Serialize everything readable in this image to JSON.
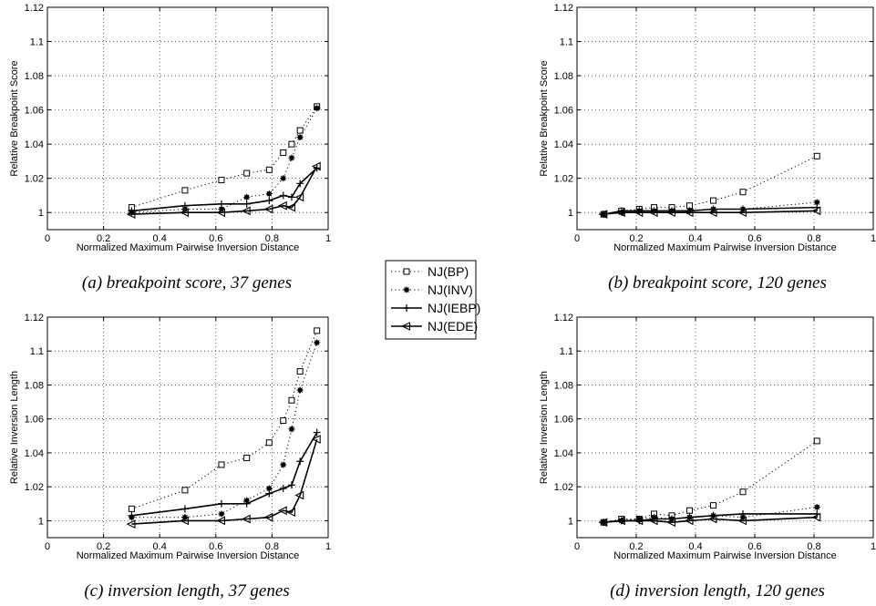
{
  "legend": {
    "entries": [
      {
        "label": "NJ(BP)",
        "line": "dotted",
        "marker": "square"
      },
      {
        "label": "NJ(INV)",
        "line": "dotted",
        "marker": "star"
      },
      {
        "label": "NJ(IEBP)",
        "line": "solid",
        "marker": "plus"
      },
      {
        "label": "NJ(EDE)",
        "line": "solid",
        "marker": "triangle-left"
      }
    ]
  },
  "captions": {
    "a": "(a) breakpoint score, 37 genes",
    "b": "(b) breakpoint score, 120 genes",
    "c": "(c) inversion length, 37 genes",
    "d": "(d) inversion length, 120 genes"
  },
  "chart_data": [
    {
      "id": "a",
      "type": "line",
      "title": "",
      "xlabel": "Normalized Maximum Pairwise Inversion Distance",
      "ylabel": "Relative Breakpoint Score",
      "xlim": [
        0,
        1
      ],
      "ylim": [
        0.99,
        1.12
      ],
      "xticks": [
        0,
        0.2,
        0.4,
        0.6,
        0.8,
        1
      ],
      "xtick_labels": [
        "0",
        "0.2",
        "0.4",
        "0.6",
        "0.8",
        "1"
      ],
      "yticks": [
        1,
        1.02,
        1.04,
        1.06,
        1.08,
        1.1,
        1.12
      ],
      "ytick_labels": [
        "1",
        "1.02",
        "1.04",
        "1.06",
        "1.08",
        "1.1",
        "1.12"
      ],
      "grid": true,
      "series": [
        {
          "name": "NJ(BP)",
          "x": [
            0.3,
            0.49,
            0.62,
            0.71,
            0.79,
            0.84,
            0.87,
            0.9,
            0.96
          ],
          "y": [
            1.003,
            1.013,
            1.019,
            1.023,
            1.025,
            1.035,
            1.04,
            1.048,
            1.062
          ]
        },
        {
          "name": "NJ(INV)",
          "x": [
            0.3,
            0.49,
            0.62,
            0.71,
            0.79,
            0.84,
            0.87,
            0.9,
            0.96
          ],
          "y": [
            1.0,
            1.002,
            1.002,
            1.009,
            1.011,
            1.02,
            1.032,
            1.044,
            1.061
          ]
        },
        {
          "name": "NJ(IEBP)",
          "x": [
            0.3,
            0.49,
            0.62,
            0.71,
            0.79,
            0.84,
            0.87,
            0.9,
            0.96
          ],
          "y": [
            1.001,
            1.004,
            1.005,
            1.005,
            1.007,
            1.01,
            1.009,
            1.017,
            1.026
          ]
        },
        {
          "name": "NJ(EDE)",
          "x": [
            0.3,
            0.49,
            0.62,
            0.71,
            0.79,
            0.84,
            0.87,
            0.9,
            0.96
          ],
          "y": [
            0.999,
            1.0,
            1.0,
            1.001,
            1.002,
            1.004,
            1.003,
            1.009,
            1.027
          ]
        }
      ]
    },
    {
      "id": "b",
      "type": "line",
      "title": "",
      "xlabel": "Normalized Maximum Pairwise Inversion Distance",
      "ylabel": "Relative Breakpoint Score",
      "xlim": [
        0,
        1
      ],
      "ylim": [
        0.99,
        1.12
      ],
      "xticks": [
        0,
        0.2,
        0.4,
        0.6,
        0.8,
        1
      ],
      "xtick_labels": [
        "0",
        "0.2",
        "0.4",
        "0.6",
        "0.8",
        "1"
      ],
      "yticks": [
        1,
        1.02,
        1.04,
        1.06,
        1.08,
        1.1,
        1.12
      ],
      "ytick_labels": [
        "1",
        "1.02",
        "1.04",
        "1.06",
        "1.08",
        "1.1",
        "1.12"
      ],
      "grid": true,
      "series": [
        {
          "name": "NJ(BP)",
          "x": [
            0.09,
            0.15,
            0.21,
            0.26,
            0.32,
            0.38,
            0.46,
            0.56,
            0.81
          ],
          "y": [
            0.999,
            1.001,
            1.002,
            1.003,
            1.003,
            1.004,
            1.007,
            1.012,
            1.033
          ]
        },
        {
          "name": "NJ(INV)",
          "x": [
            0.09,
            0.15,
            0.21,
            0.26,
            0.32,
            0.38,
            0.46,
            0.56,
            0.81
          ],
          "y": [
            0.999,
            1.0,
            1.001,
            1.001,
            1.001,
            1.001,
            1.002,
            1.002,
            1.006
          ]
        },
        {
          "name": "NJ(IEBP)",
          "x": [
            0.09,
            0.15,
            0.21,
            0.26,
            0.32,
            0.38,
            0.46,
            0.56,
            0.81
          ],
          "y": [
            0.999,
            1.001,
            1.001,
            1.001,
            1.001,
            1.001,
            1.002,
            1.002,
            1.003
          ]
        },
        {
          "name": "NJ(EDE)",
          "x": [
            0.09,
            0.15,
            0.21,
            0.26,
            0.32,
            0.38,
            0.46,
            0.56,
            0.81
          ],
          "y": [
            0.999,
            1.0,
            1.0,
            1.0,
            1.0,
            1.0,
            1.0,
            1.0,
            1.001
          ]
        }
      ]
    },
    {
      "id": "c",
      "type": "line",
      "title": "",
      "xlabel": "Normalized Maximum Pairwise Inversion Distance",
      "ylabel": "Relative Inversion Length",
      "xlim": [
        0,
        1
      ],
      "ylim": [
        0.99,
        1.12
      ],
      "xticks": [
        0,
        0.2,
        0.4,
        0.6,
        0.8,
        1
      ],
      "xtick_labels": [
        "0",
        "0.2",
        "0.4",
        "0.6",
        "0.8",
        "1"
      ],
      "yticks": [
        1,
        1.02,
        1.04,
        1.06,
        1.08,
        1.1,
        1.12
      ],
      "ytick_labels": [
        "1",
        "1.02",
        "1.04",
        "1.06",
        "1.08",
        "1.1",
        "1.12"
      ],
      "grid": true,
      "series": [
        {
          "name": "NJ(BP)",
          "x": [
            0.3,
            0.49,
            0.62,
            0.71,
            0.79,
            0.84,
            0.87,
            0.9,
            0.96
          ],
          "y": [
            1.007,
            1.018,
            1.033,
            1.037,
            1.046,
            1.059,
            1.071,
            1.088,
            1.112
          ]
        },
        {
          "name": "NJ(INV)",
          "x": [
            0.3,
            0.49,
            0.62,
            0.71,
            0.79,
            0.84,
            0.87,
            0.9,
            0.96
          ],
          "y": [
            1.002,
            1.002,
            1.004,
            1.012,
            1.019,
            1.033,
            1.054,
            1.077,
            1.105
          ]
        },
        {
          "name": "NJ(IEBP)",
          "x": [
            0.3,
            0.49,
            0.62,
            0.71,
            0.79,
            0.84,
            0.87,
            0.9,
            0.96
          ],
          "y": [
            1.003,
            1.007,
            1.01,
            1.01,
            1.016,
            1.019,
            1.021,
            1.035,
            1.052
          ]
        },
        {
          "name": "NJ(EDE)",
          "x": [
            0.3,
            0.49,
            0.62,
            0.71,
            0.79,
            0.84,
            0.87,
            0.9,
            0.96
          ],
          "y": [
            0.998,
            1.0,
            1.0,
            1.001,
            1.002,
            1.006,
            1.005,
            1.015,
            1.048
          ]
        }
      ]
    },
    {
      "id": "d",
      "type": "line",
      "title": "",
      "xlabel": "Normalized Maximum Pairwise Inversion Distance",
      "ylabel": "Relative Inversion Length",
      "xlim": [
        0,
        1
      ],
      "ylim": [
        0.99,
        1.12
      ],
      "xticks": [
        0,
        0.2,
        0.4,
        0.6,
        0.8,
        1
      ],
      "xtick_labels": [
        "0",
        "0.2",
        "0.4",
        "0.6",
        "0.8",
        "1"
      ],
      "yticks": [
        1,
        1.02,
        1.04,
        1.06,
        1.08,
        1.1,
        1.12
      ],
      "ytick_labels": [
        "1",
        "1.02",
        "1.04",
        "1.06",
        "1.08",
        "1.1",
        "1.12"
      ],
      "grid": true,
      "series": [
        {
          "name": "NJ(BP)",
          "x": [
            0.09,
            0.15,
            0.21,
            0.26,
            0.32,
            0.38,
            0.46,
            0.56,
            0.81
          ],
          "y": [
            0.999,
            1.001,
            1.001,
            1.004,
            1.003,
            1.006,
            1.009,
            1.017,
            1.047
          ]
        },
        {
          "name": "NJ(INV)",
          "x": [
            0.09,
            0.15,
            0.21,
            0.26,
            0.32,
            0.38,
            0.46,
            0.56,
            0.81
          ],
          "y": [
            0.999,
            1.0,
            1.001,
            1.002,
            1.001,
            1.002,
            1.003,
            1.002,
            1.008
          ]
        },
        {
          "name": "NJ(IEBP)",
          "x": [
            0.09,
            0.15,
            0.21,
            0.26,
            0.32,
            0.38,
            0.46,
            0.56,
            0.81
          ],
          "y": [
            0.999,
            1.0,
            1.0,
            1.001,
            1.001,
            1.002,
            1.003,
            1.004,
            1.004
          ]
        },
        {
          "name": "NJ(EDE)",
          "x": [
            0.09,
            0.15,
            0.21,
            0.26,
            0.32,
            0.38,
            0.46,
            0.56,
            0.81
          ],
          "y": [
            0.999,
            1.0,
            1.0,
            1.0,
            0.999,
            1.0,
            1.001,
            1.0,
            1.002
          ]
        }
      ]
    }
  ]
}
